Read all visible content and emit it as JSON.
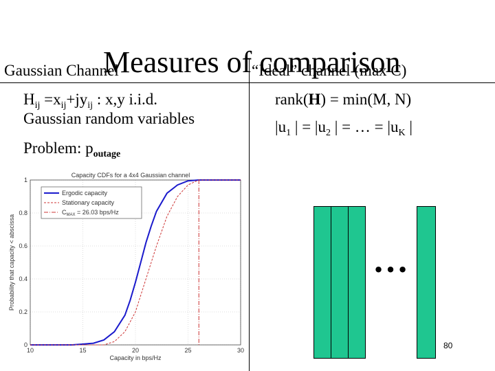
{
  "slide": {
    "title": "Measures of comparison",
    "left_heading": "Gaussian Channel",
    "right_heading": "“Ideal” channel (max C)",
    "page_number": "80"
  },
  "left": {
    "line1_prefix": "H",
    "line1_sub1": "ij",
    "line1_mid": " =x",
    "line1_sub2": "ij",
    "line1_mid2": "+jy",
    "line1_sub3": "ij",
    "line1_suffix": " : x,y i.i.d.",
    "line2": "Gaussian random variables",
    "line3_prefix": "Problem: p",
    "line3_sub": "outage"
  },
  "right": {
    "rank_prefix": "rank(",
    "rank_bold": "H",
    "rank_suffix": ") = min(M, N)",
    "u_a": "|u",
    "u_a_sub": "1",
    "u_b": " | = |u",
    "u_b_sub": "2",
    "u_c": " | = … = |u",
    "u_c_sub": "K",
    "u_d": " |",
    "ellipsis": "…"
  },
  "chart_data": {
    "type": "line",
    "title": "Capacity CDFs for a 4x4 Gaussian channel",
    "xlabel": "Capacity in bps/Hz",
    "ylabel": "Probability that capacity < abscissa",
    "xlim": [
      10,
      30
    ],
    "ylim": [
      0,
      1
    ],
    "xticks": [
      "10",
      "15",
      "20",
      "25",
      "30"
    ],
    "yticks": [
      "0",
      "0.2",
      "0.4",
      "0.6",
      "0.8",
      "1"
    ],
    "grid": true,
    "legend": [
      {
        "name": "Ergodic capacity",
        "color": "#1a1acc",
        "style": "solid"
      },
      {
        "name": "Stationary capacity",
        "color": "#cc3333",
        "style": "dashed"
      },
      {
        "name": "C",
        "sub": "MAX",
        "suffix": " = 26.03 bps/Hz",
        "color": "#cc3333",
        "style": "dashdot"
      }
    ],
    "series": [
      {
        "name": "Ergodic capacity",
        "color": "#1a1acc",
        "x": [
          10,
          14,
          16,
          17,
          18,
          19,
          19.5,
          20,
          20.5,
          21,
          21.5,
          22,
          23,
          24,
          25,
          26,
          30
        ],
        "y": [
          0,
          0,
          0.01,
          0.03,
          0.08,
          0.18,
          0.27,
          0.38,
          0.5,
          0.62,
          0.72,
          0.81,
          0.92,
          0.97,
          0.995,
          1,
          1
        ]
      },
      {
        "name": "Stationary capacity",
        "color": "#cc3333",
        "x": [
          10,
          17,
          18,
          19,
          20,
          21,
          22,
          23,
          24,
          25,
          26,
          30
        ],
        "y": [
          0,
          0,
          0.02,
          0.08,
          0.2,
          0.4,
          0.6,
          0.78,
          0.9,
          0.97,
          1,
          1
        ]
      }
    ],
    "cmax_x": 26.03
  },
  "colors": {
    "bar_fill": "#1fc690"
  }
}
